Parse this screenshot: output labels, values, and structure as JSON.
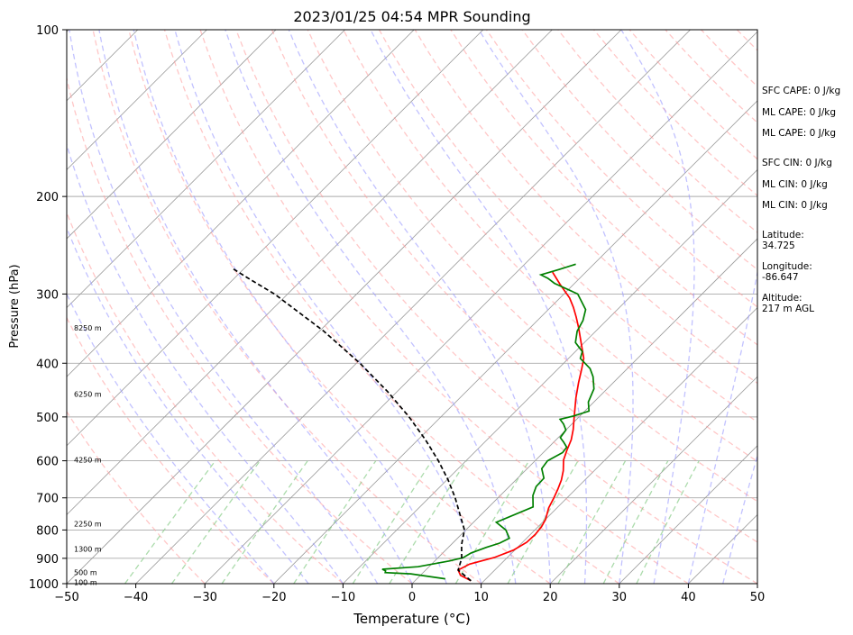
{
  "chart_data": {
    "type": "line",
    "subtype": "skew-t log-p",
    "title": "2023/01/25 04:54 MPR Sounding",
    "xlabel": "Temperature (°C)",
    "ylabel": "Pressure (hPa)",
    "x_ticks": [
      -50,
      -40,
      -30,
      -20,
      -10,
      0,
      10,
      20,
      30,
      40,
      50
    ],
    "xlim": [
      -50,
      50
    ],
    "y_ticks": [
      100,
      200,
      300,
      400,
      500,
      600,
      700,
      800,
      900,
      1000
    ],
    "ylim": [
      1000,
      100
    ],
    "y_scale": "log",
    "grid": true,
    "height_labels": [
      {
        "text": "8250 m",
        "pressure": 345
      },
      {
        "text": "6250 m",
        "pressure": 455
      },
      {
        "text": "4250 m",
        "pressure": 598
      },
      {
        "text": "2250 m",
        "pressure": 780
      },
      {
        "text": "1300 m",
        "pressure": 865
      },
      {
        "text": "500 m",
        "pressure": 955
      },
      {
        "text": "100 m",
        "pressure": 995
      }
    ],
    "series": [
      {
        "role": "temperature",
        "color": "#ff0000",
        "points": [
          [
            8.1,
            988
          ],
          [
            5.8,
            966
          ],
          [
            4.7,
            945
          ],
          [
            5.5,
            922
          ],
          [
            8.1,
            897
          ],
          [
            9.8,
            870
          ],
          [
            10.6,
            842
          ],
          [
            10.7,
            815
          ],
          [
            10.5,
            790
          ],
          [
            10.0,
            765
          ],
          [
            8.8,
            730
          ],
          [
            8.1,
            700
          ],
          [
            7.4,
            675
          ],
          [
            6.6,
            650
          ],
          [
            5.5,
            625
          ],
          [
            4.0,
            598
          ],
          [
            3.1,
            575
          ],
          [
            2.2,
            550
          ],
          [
            1.0,
            527
          ],
          [
            -0.7,
            500
          ],
          [
            -3.2,
            462
          ],
          [
            -5.0,
            434
          ],
          [
            -6.6,
            409
          ],
          [
            -7.8,
            392
          ],
          [
            -10.7,
            365
          ],
          [
            -13.0,
            345
          ],
          [
            -14.9,
            330
          ],
          [
            -16.7,
            317
          ],
          [
            -18.6,
            305
          ],
          [
            -22.0,
            288
          ],
          [
            -24.8,
            274
          ]
        ]
      },
      {
        "role": "dewpoint",
        "color": "#008000",
        "points": [
          [
            4.1,
            980
          ],
          [
            -1.6,
            960
          ],
          [
            -5.5,
            955
          ],
          [
            -5.7,
            948
          ],
          [
            -6.4,
            942
          ],
          [
            -1.6,
            932
          ],
          [
            2.1,
            910
          ],
          [
            3.6,
            898
          ],
          [
            4.1,
            880
          ],
          [
            5.5,
            860
          ],
          [
            6.8,
            845
          ],
          [
            7.5,
            828
          ],
          [
            5.8,
            800
          ],
          [
            3.3,
            775
          ],
          [
            6.4,
            727
          ],
          [
            4.7,
            693
          ],
          [
            3.9,
            668
          ],
          [
            3.8,
            645
          ],
          [
            2.1,
            620
          ],
          [
            1.8,
            600
          ],
          [
            2.8,
            580
          ],
          [
            2.6,
            567
          ],
          [
            1.4,
            555
          ],
          [
            0.3,
            545
          ],
          [
            0.0,
            528
          ],
          [
            -1.2,
            515
          ],
          [
            -2.4,
            505
          ],
          [
            -0.9,
            498
          ],
          [
            0.6,
            488
          ],
          [
            -0.8,
            470
          ],
          [
            -1.9,
            445
          ],
          [
            -3.8,
            423
          ],
          [
            -5.4,
            409
          ],
          [
            -8.3,
            392
          ],
          [
            -9.0,
            381
          ],
          [
            -11.3,
            367
          ],
          [
            -12.7,
            350
          ],
          [
            -13.4,
            335
          ],
          [
            -14.6,
            320
          ],
          [
            -18.0,
            300
          ],
          [
            -22.9,
            287
          ],
          [
            -24.6,
            281
          ],
          [
            -26.1,
            277
          ],
          [
            -24.3,
            271
          ],
          [
            -22.6,
            265
          ]
        ]
      },
      {
        "role": "parcel profile",
        "color": "#000000",
        "dashed": true,
        "points": [
          [
            8.1,
            988
          ],
          [
            4.7,
            945
          ],
          [
            3.5,
            900
          ],
          [
            1.5,
            850
          ],
          [
            -0.2,
            800
          ],
          [
            -3.1,
            750
          ],
          [
            -6.2,
            700
          ],
          [
            -9.8,
            650
          ],
          [
            -14.0,
            600
          ],
          [
            -18.9,
            550
          ],
          [
            -24.6,
            500
          ],
          [
            -31.4,
            450
          ],
          [
            -39.5,
            400
          ],
          [
            -49.4,
            350
          ],
          [
            -61.9,
            300
          ],
          [
            -68.3,
            280
          ],
          [
            -71.6,
            270
          ]
        ]
      }
    ]
  },
  "side_info": {
    "sfc_cape": "SFC CAPE: 0 J/kg",
    "ml_cape_1": "ML CAPE: 0 J/kg",
    "ml_cape_2": "ML CAPE: 0 J/kg",
    "sfc_cin": "SFC CIN: 0 J/kg",
    "ml_cin_1": "ML CIN: 0 J/kg",
    "ml_cin_2": "ML CIN: 0 J/kg",
    "latitude": "Latitude:\n34.725",
    "longitude": "Longitude:\n-86.647",
    "altitude": "Altitude:\n217 m AGL"
  },
  "colors": {
    "dry_adiabat": "#ff9999",
    "moist_adiabat": "#9999ff",
    "mixing_ratio": "#88cc88",
    "isotherm": "#999999",
    "isobar": "#aaaaaa"
  }
}
